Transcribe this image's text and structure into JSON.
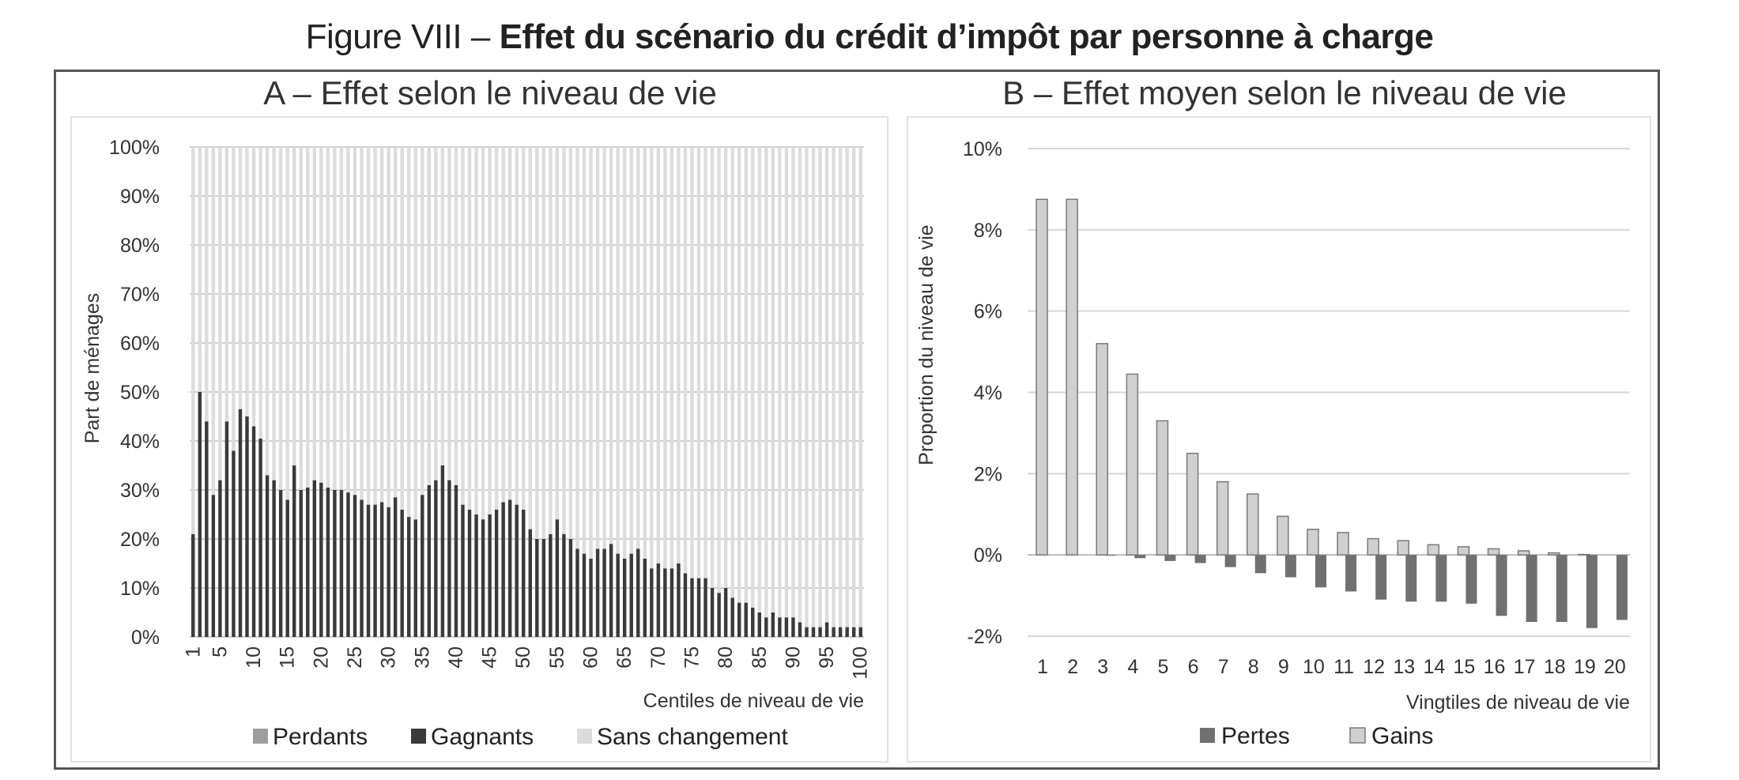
{
  "figure": {
    "title_prefix": "Figure VIII – ",
    "title_main": "Effet du scénario du crédit d’impôt par personne à charge"
  },
  "chart_data": [
    {
      "type": "bar",
      "stacked": true,
      "panel_title": "A – Effet selon le niveau de vie",
      "xlabel": "Centiles de niveau de vie",
      "ylabel": "Part de ménages",
      "x_tick_labels": [
        "1",
        "5",
        "10",
        "15",
        "20",
        "25",
        "30",
        "35",
        "40",
        "45",
        "50",
        "55",
        "60",
        "65",
        "70",
        "75",
        "80",
        "85",
        "90",
        "95",
        "100"
      ],
      "y_ticks": [
        "0%",
        "10%",
        "20%",
        "30%",
        "40%",
        "50%",
        "60%",
        "70%",
        "80%",
        "90%",
        "100%"
      ],
      "ylim": [
        0,
        100
      ],
      "legend_position": "bottom",
      "colors": {
        "Perdants": "#9e9e9e",
        "Gagnants": "#3a3a3a",
        "Sans changement": "#dcdcdc"
      },
      "categories": [
        1,
        2,
        3,
        4,
        5,
        6,
        7,
        8,
        9,
        10,
        11,
        12,
        13,
        14,
        15,
        16,
        17,
        18,
        19,
        20,
        21,
        22,
        23,
        24,
        25,
        26,
        27,
        28,
        29,
        30,
        31,
        32,
        33,
        34,
        35,
        36,
        37,
        38,
        39,
        40,
        41,
        42,
        43,
        44,
        45,
        46,
        47,
        48,
        49,
        50,
        51,
        52,
        53,
        54,
        55,
        56,
        57,
        58,
        59,
        60,
        61,
        62,
        63,
        64,
        65,
        66,
        67,
        68,
        69,
        70,
        71,
        72,
        73,
        74,
        75,
        76,
        77,
        78,
        79,
        80,
        81,
        82,
        83,
        84,
        85,
        86,
        87,
        88,
        89,
        90,
        91,
        92,
        93,
        94,
        95,
        96,
        97,
        98,
        99,
        100
      ],
      "series": [
        {
          "name": "Perdants",
          "values": [
            0,
            0,
            0,
            0,
            0,
            0,
            0,
            0,
            0,
            0,
            0,
            0,
            0,
            0,
            0,
            0,
            0,
            0,
            0,
            0,
            0,
            0,
            0,
            0,
            0,
            0,
            0,
            0,
            0,
            0,
            0,
            0,
            0,
            0,
            0,
            0,
            0,
            0,
            0,
            0,
            0,
            0,
            0,
            0,
            0,
            0,
            0,
            0,
            0,
            0,
            0,
            0,
            0,
            0,
            0,
            0,
            0,
            0,
            0,
            0,
            0,
            0,
            0,
            0,
            0,
            0,
            0,
            0,
            0,
            0,
            0,
            0,
            0,
            0,
            0,
            0,
            0,
            0,
            0,
            0,
            0,
            0,
            0,
            0,
            0,
            0,
            0,
            0,
            0,
            0,
            0,
            0,
            0,
            0,
            0,
            0,
            0,
            0,
            0,
            0
          ]
        },
        {
          "name": "Gagnants",
          "values": [
            21,
            50,
            44,
            29,
            32,
            44,
            38,
            46.5,
            45,
            43,
            40.5,
            33,
            32,
            30,
            28,
            35,
            30,
            30.5,
            32,
            31.5,
            30.5,
            30,
            30,
            29.5,
            29,
            28,
            27,
            27,
            27.5,
            26.5,
            28.5,
            26,
            24.5,
            24,
            29,
            31,
            32,
            35,
            32,
            31,
            27,
            26,
            25,
            24,
            25,
            26,
            27.5,
            28,
            27,
            26,
            22,
            20,
            20,
            21,
            24,
            21,
            20,
            18,
            17,
            16,
            18,
            18,
            19,
            17,
            16,
            17,
            18,
            16,
            14,
            15,
            14,
            14,
            15,
            13,
            12,
            12,
            12,
            10,
            9,
            10,
            8,
            7,
            7,
            6,
            5,
            4,
            5,
            4,
            4,
            4,
            3,
            2,
            2,
            2,
            3,
            2,
            2,
            2,
            2,
            2
          ]
        },
        {
          "name": "Sans changement",
          "values": [
            79,
            50,
            56,
            71,
            68,
            56,
            62,
            53.5,
            55,
            57,
            59.5,
            67,
            68,
            70,
            72,
            65,
            70,
            69.5,
            68,
            68.5,
            69.5,
            70,
            70,
            70.5,
            71,
            72,
            73,
            73,
            72.5,
            73.5,
            71.5,
            74,
            75.5,
            76,
            71,
            69,
            68,
            65,
            68,
            69,
            73,
            74,
            75,
            76,
            75,
            74,
            72.5,
            72,
            73,
            74,
            78,
            80,
            80,
            79,
            76,
            79,
            80,
            82,
            83,
            84,
            82,
            82,
            81,
            83,
            84,
            83,
            82,
            84,
            86,
            85,
            86,
            86,
            85,
            87,
            88,
            88,
            88,
            90,
            91,
            90,
            92,
            93,
            93,
            94,
            95,
            96,
            95,
            96,
            96,
            96,
            97,
            98,
            98,
            98,
            97,
            98,
            98,
            98,
            98,
            98
          ]
        }
      ]
    },
    {
      "type": "bar",
      "panel_title": "B – Effet moyen selon le niveau de vie",
      "xlabel": "Vingtiles de niveau de vie",
      "ylabel": "Proportion du niveau de vie",
      "y_ticks": [
        "-2%",
        "0%",
        "2%",
        "4%",
        "6%",
        "8%",
        "10%"
      ],
      "ylim": [
        -2,
        10
      ],
      "legend_position": "bottom",
      "colors": {
        "Pertes": "#707070",
        "Gains": "#d0d0d0"
      },
      "categories": [
        "1",
        "2",
        "3",
        "4",
        "5",
        "6",
        "7",
        "8",
        "9",
        "10",
        "11",
        "12",
        "13",
        "14",
        "15",
        "16",
        "17",
        "18",
        "19",
        "20"
      ],
      "series": [
        {
          "name": "Pertes",
          "values": [
            0,
            0,
            -0.02,
            -0.08,
            -0.15,
            -0.2,
            -0.3,
            -0.45,
            -0.55,
            -0.8,
            -0.9,
            -1.1,
            -1.15,
            -1.15,
            -1.2,
            -1.5,
            -1.65,
            -1.65,
            -1.8,
            -1.6
          ]
        },
        {
          "name": "Gains",
          "values": [
            8.75,
            8.75,
            5.2,
            4.45,
            3.3,
            2.5,
            1.8,
            1.5,
            0.95,
            0.63,
            0.55,
            0.4,
            0.35,
            0.25,
            0.2,
            0.15,
            0.1,
            0.05,
            0.01,
            0
          ]
        }
      ]
    }
  ]
}
